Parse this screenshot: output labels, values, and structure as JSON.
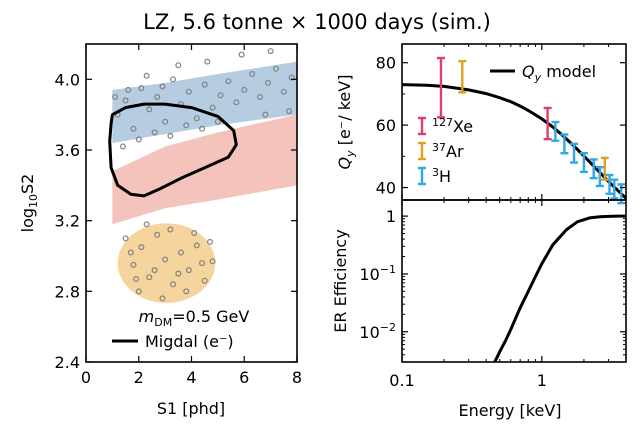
{
  "title": "LZ, 5.6 tonne × 1000 days (sim.)",
  "chart_data": [
    {
      "type": "scatter",
      "xlabel": "S1 [phd]",
      "ylabel_base": "log",
      "ylabel_sub": "10",
      "ylabel_tail": "S2",
      "xlim": [
        0,
        8
      ],
      "ylim": [
        2.4,
        4.2
      ],
      "xticks": [
        "0",
        "2",
        "4",
        "6",
        "8"
      ],
      "yticks": [
        "2.4",
        "2.8",
        "3.2",
        "3.6",
        "4.0"
      ],
      "annotation": {
        "prefix": "m",
        "sub": "DM",
        "suffix": "=0.5 GeV"
      },
      "legend": {
        "label": "Migdal (e⁻)",
        "position": "bottom-right"
      },
      "colors": {
        "blue_band": "#a9c4dc",
        "red_band": "#f2b8b0",
        "orange_blob": "#f5cf94",
        "points": "#808080",
        "contour": "#000000"
      },
      "contour": [
        [
          1.0,
          3.8
        ],
        [
          1.5,
          3.84
        ],
        [
          2.2,
          3.86
        ],
        [
          3.0,
          3.86
        ],
        [
          4.0,
          3.84
        ],
        [
          5.0,
          3.79
        ],
        [
          5.6,
          3.71
        ],
        [
          5.7,
          3.63
        ],
        [
          5.4,
          3.56
        ],
        [
          4.5,
          3.5
        ],
        [
          3.6,
          3.44
        ],
        [
          2.8,
          3.38
        ],
        [
          2.2,
          3.34
        ],
        [
          1.7,
          3.35
        ],
        [
          1.2,
          3.4
        ],
        [
          0.95,
          3.5
        ],
        [
          0.9,
          3.65
        ],
        [
          0.95,
          3.75
        ],
        [
          1.0,
          3.8
        ]
      ],
      "series": [
        {
          "name": "ER band",
          "points": [
            [
              1.2,
              3.8
            ],
            [
              1.5,
              3.88
            ],
            [
              1.8,
              3.72
            ],
            [
              2.1,
              3.95
            ],
            [
              2.4,
              3.83
            ],
            [
              2.7,
              3.9
            ],
            [
              3.0,
              3.76
            ],
            [
              3.3,
              4.0
            ],
            [
              3.6,
              3.86
            ],
            [
              3.9,
              3.93
            ],
            [
              4.2,
              3.78
            ],
            [
              4.5,
              3.97
            ],
            [
              4.8,
              3.84
            ],
            [
              5.1,
              3.91
            ],
            [
              5.4,
              3.99
            ],
            [
              5.7,
              3.87
            ],
            [
              6.0,
              3.94
            ],
            [
              6.3,
              4.03
            ],
            [
              6.6,
              3.9
            ],
            [
              6.9,
              3.98
            ],
            [
              7.2,
              4.06
            ],
            [
              7.5,
              3.93
            ],
            [
              7.8,
              4.01
            ],
            [
              2.0,
              3.66
            ],
            [
              2.6,
              3.7
            ],
            [
              3.2,
              3.68
            ],
            [
              3.8,
              3.74
            ],
            [
              4.4,
              3.72
            ],
            [
              5.0,
              3.76
            ],
            [
              1.4,
              3.62
            ],
            [
              1.6,
              3.94
            ],
            [
              2.3,
              4.02
            ],
            [
              3.5,
              4.08
            ],
            [
              4.6,
              4.1
            ],
            [
              5.9,
              4.14
            ],
            [
              7.0,
              4.16
            ],
            [
              7.7,
              3.82
            ],
            [
              6.8,
              3.8
            ],
            [
              1.1,
              3.9
            ],
            [
              2.9,
              3.96
            ]
          ]
        },
        {
          "name": "DM signal",
          "points": [
            [
              1.5,
              3.1
            ],
            [
              1.8,
              2.95
            ],
            [
              2.1,
              3.05
            ],
            [
              2.4,
              2.88
            ],
            [
              2.7,
              3.12
            ],
            [
              3.0,
              2.98
            ],
            [
              3.3,
              2.84
            ],
            [
              3.6,
              3.02
            ],
            [
              3.9,
              2.92
            ],
            [
              4.2,
              3.06
            ],
            [
              4.5,
              2.86
            ],
            [
              4.8,
              2.97
            ],
            [
              2.0,
              2.8
            ],
            [
              2.6,
              2.92
            ],
            [
              3.2,
              3.15
            ],
            [
              3.8,
              2.8
            ],
            [
              4.4,
              2.96
            ],
            [
              1.7,
              3.02
            ],
            [
              2.9,
              2.76
            ],
            [
              4.1,
              3.13
            ],
            [
              3.5,
              2.9
            ],
            [
              2.3,
              3.18
            ],
            [
              4.7,
              3.08
            ],
            [
              1.9,
              2.87
            ]
          ]
        }
      ]
    },
    {
      "type": "line",
      "xlabel": "",
      "ylabel_base": "Q",
      "ylabel_sub": "y",
      "ylabel_tail": " [e⁻/ keV]",
      "xscale": "log",
      "xlim": [
        0.1,
        4
      ],
      "ylim": [
        36,
        86
      ],
      "yticks": [
        "40",
        "60",
        "80"
      ],
      "legend_model": {
        "base": "Q",
        "sub": "y",
        "tail": " model",
        "position": "top-right"
      },
      "legend_data": [
        {
          "sup": "127",
          "tail": "Xe",
          "color": "#e03c6e"
        },
        {
          "sup": "37",
          "tail": "Ar",
          "color": "#e0a020"
        },
        {
          "sup": "3",
          "tail": "H",
          "color": "#30a8e8"
        }
      ],
      "colors": {
        "Xe127": "#e03c6e",
        "Ar37": "#e0a020",
        "H3": "#30a8e8",
        "model": "#000000"
      },
      "model_curve": {
        "x": [
          0.1,
          0.15,
          0.2,
          0.3,
          0.4,
          0.5,
          0.6,
          0.7,
          0.8,
          0.9,
          1.0,
          1.2,
          1.4,
          1.6,
          1.8,
          2.0,
          2.2,
          2.5,
          2.8,
          3.2,
          3.6,
          4.0
        ],
        "y": [
          73,
          72.8,
          72.4,
          71.3,
          70.1,
          68.8,
          67.5,
          66.1,
          64.7,
          63.3,
          62.0,
          59.4,
          56.8,
          54.4,
          52.2,
          50.1,
          48.2,
          45.6,
          43.3,
          40.7,
          38.5,
          36.6
        ]
      },
      "series": [
        {
          "name": "Xe127",
          "points": [
            {
              "x": 0.19,
              "y": 72,
              "err": 9.5
            },
            {
              "x": 1.1,
              "y": 60.5,
              "err": 5
            }
          ]
        },
        {
          "name": "Ar37",
          "points": [
            {
              "x": 0.27,
              "y": 75.5,
              "err": 5
            },
            {
              "x": 2.82,
              "y": 46,
              "err": 3.5
            }
          ]
        },
        {
          "name": "H3",
          "points": [
            {
              "x": 1.25,
              "y": 58,
              "err": 3
            },
            {
              "x": 1.45,
              "y": 54,
              "err": 3
            },
            {
              "x": 1.7,
              "y": 51,
              "err": 3
            },
            {
              "x": 2.0,
              "y": 48,
              "err": 3
            },
            {
              "x": 2.35,
              "y": 46,
              "err": 3
            },
            {
              "x": 2.6,
              "y": 43.5,
              "err": 3
            },
            {
              "x": 3.05,
              "y": 41,
              "err": 3
            },
            {
              "x": 3.3,
              "y": 39.5,
              "err": 3
            },
            {
              "x": 3.7,
              "y": 38,
              "err": 3
            }
          ]
        }
      ]
    },
    {
      "type": "line",
      "xlabel": "Energy [keV]",
      "ylabel": "ER Efficiency",
      "xscale": "log",
      "yscale": "log",
      "xlim": [
        0.1,
        4
      ],
      "ylim": [
        0.003,
        1.9
      ],
      "xticks": [
        {
          "v": 0.1,
          "label": "0.1"
        },
        {
          "v": 1,
          "label": "1"
        }
      ],
      "yticks": [
        {
          "v": 1,
          "base": "1",
          "sup": ""
        },
        {
          "v": 0.1,
          "base": "10",
          "sup": "−1"
        },
        {
          "v": 0.01,
          "base": "10",
          "sup": "−2"
        }
      ],
      "curve": {
        "x": [
          0.46,
          0.5,
          0.55,
          0.6,
          0.7,
          0.8,
          0.9,
          1.0,
          1.2,
          1.5,
          1.8,
          2.2,
          2.6,
          3.0,
          3.5,
          4.0
        ],
        "y": [
          0.003,
          0.0045,
          0.007,
          0.011,
          0.026,
          0.05,
          0.09,
          0.15,
          0.32,
          0.58,
          0.8,
          0.93,
          0.975,
          0.99,
          1.0,
          1.0
        ]
      }
    }
  ]
}
